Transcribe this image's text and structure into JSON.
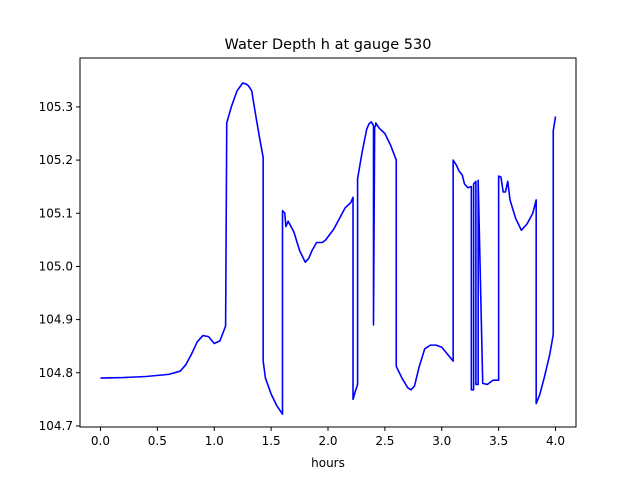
{
  "chart_data": {
    "type": "line",
    "title": "Water Depth h at gauge 530",
    "xlabel": "hours",
    "ylabel": "",
    "xlim": [
      -0.18,
      4.18
    ],
    "ylim": [
      104.698,
      105.392
    ],
    "xticks": [
      0.0,
      0.5,
      1.0,
      1.5,
      2.0,
      2.5,
      3.0,
      3.5,
      4.0
    ],
    "xtick_labels": [
      "0.0",
      "0.5",
      "1.0",
      "1.5",
      "2.0",
      "2.5",
      "3.0",
      "3.5",
      "4.0"
    ],
    "yticks": [
      104.7,
      104.8,
      104.9,
      105.0,
      105.1,
      105.2,
      105.3
    ],
    "ytick_labels": [
      "104.7",
      "104.8",
      "104.9",
      "105.0",
      "105.1",
      "105.2",
      "105.3"
    ],
    "grid": false,
    "legend": "none",
    "series": [
      {
        "color": "#0000ff",
        "x": [
          0.0,
          0.2,
          0.4,
          0.6,
          0.7,
          0.75,
          0.8,
          0.85,
          0.9,
          0.95,
          1.0,
          1.05,
          1.1,
          1.11,
          1.15,
          1.2,
          1.25,
          1.28,
          1.3,
          1.33,
          1.36,
          1.4,
          1.43,
          1.43,
          1.45,
          1.5,
          1.55,
          1.6,
          1.6,
          1.62,
          1.63,
          1.65,
          1.7,
          1.75,
          1.8,
          1.83,
          1.86,
          1.9,
          1.95,
          1.98,
          2.05,
          2.1,
          2.15,
          2.2,
          2.22,
          2.22,
          2.24,
          2.26,
          2.26,
          2.3,
          2.34,
          2.36,
          2.38,
          2.4,
          2.4,
          2.41,
          2.42,
          2.42,
          2.45,
          2.5,
          2.55,
          2.6,
          2.6,
          2.65,
          2.7,
          2.73,
          2.76,
          2.8,
          2.85,
          2.9,
          2.95,
          3.0,
          3.05,
          3.1,
          3.1,
          3.13,
          3.15,
          3.18,
          3.2,
          3.23,
          3.26,
          3.26,
          3.28,
          3.28,
          3.3,
          3.3,
          3.32,
          3.32,
          3.36,
          3.4,
          3.45,
          3.5,
          3.5,
          3.52,
          3.54,
          3.56,
          3.58,
          3.6,
          3.65,
          3.7,
          3.75,
          3.8,
          3.83,
          3.83,
          3.86,
          3.9,
          3.95,
          3.98,
          3.98,
          4.0
        ],
        "y": [
          104.79,
          104.791,
          104.793,
          104.797,
          104.803,
          104.815,
          104.835,
          104.858,
          104.87,
          104.868,
          104.855,
          104.86,
          104.888,
          105.27,
          105.3,
          105.33,
          105.345,
          105.343,
          105.34,
          105.33,
          105.29,
          105.24,
          105.205,
          104.822,
          104.79,
          104.76,
          104.738,
          104.722,
          105.105,
          105.1,
          105.075,
          105.085,
          105.065,
          105.03,
          105.008,
          105.015,
          105.03,
          105.045,
          105.045,
          105.05,
          105.07,
          105.09,
          105.11,
          105.12,
          105.13,
          104.75,
          104.765,
          104.778,
          105.165,
          105.215,
          105.258,
          105.268,
          105.272,
          105.265,
          104.89,
          105.262,
          105.265,
          105.27,
          105.26,
          105.25,
          105.228,
          105.2,
          104.812,
          104.79,
          104.772,
          104.768,
          104.775,
          104.81,
          104.845,
          104.852,
          104.852,
          104.848,
          104.835,
          104.822,
          105.2,
          105.19,
          105.18,
          105.172,
          105.155,
          105.148,
          105.15,
          104.768,
          104.768,
          105.155,
          105.16,
          104.778,
          104.778,
          105.162,
          104.78,
          104.778,
          104.786,
          104.786,
          105.17,
          105.168,
          105.14,
          105.14,
          105.16,
          105.125,
          105.09,
          105.068,
          105.08,
          105.1,
          105.125,
          104.742,
          104.758,
          104.79,
          104.835,
          104.872,
          105.255,
          105.282
        ]
      }
    ]
  }
}
